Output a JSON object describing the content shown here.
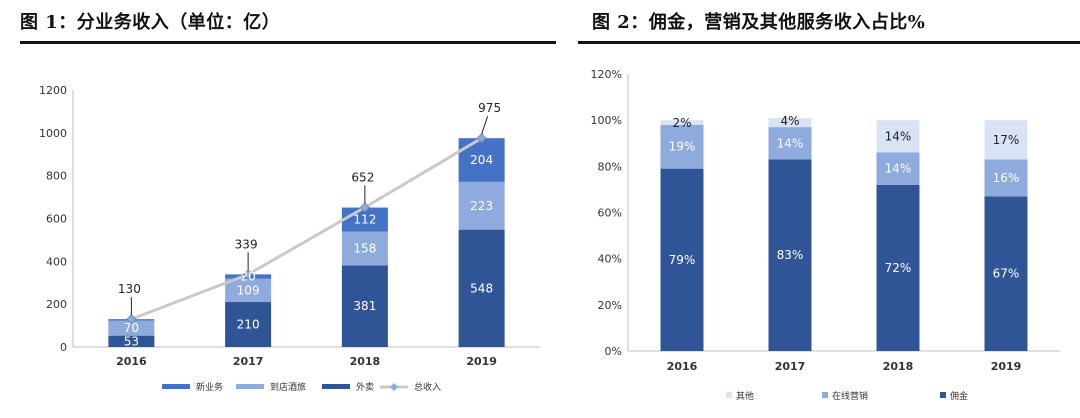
{
  "colors": {
    "dark_blue": "#2f5597",
    "mid_blue": "#4472c4",
    "light_blue": "#8faadc",
    "pale_blue": "#dae3f3",
    "line_gray": "#c9c9c9",
    "marker": "#8faadc"
  },
  "chart_data": [
    {
      "type": "bar",
      "stacked": true,
      "title": "图 1：分业务收入（单位：亿）",
      "categories": [
        "2016",
        "2017",
        "2018",
        "2019"
      ],
      "ylim": [
        0,
        1200
      ],
      "yticks": [
        0,
        200,
        400,
        600,
        800,
        1000,
        1200
      ],
      "xlabel": "",
      "ylabel": "",
      "legend_position": "bottom",
      "grid": false,
      "series": [
        {
          "name": "外卖",
          "color": "#2f5597",
          "values": [
            53,
            210,
            381,
            548
          ]
        },
        {
          "name": "到店酒旅",
          "color": "#8faadc",
          "values": [
            70,
            109,
            158,
            223
          ]
        },
        {
          "name": "新业务",
          "color": "#4472c4",
          "values": [
            7,
            20,
            112,
            204
          ]
        }
      ],
      "segment_labels": [
        [
          "53",
          "210",
          "381",
          "548"
        ],
        [
          "70",
          "109",
          "158",
          "223"
        ],
        [
          "",
          "20",
          "112",
          "204"
        ]
      ],
      "line_series": {
        "name": "总收入",
        "values": [
          130,
          339,
          652,
          975
        ],
        "labels": [
          "130",
          "339",
          "652",
          "975"
        ]
      },
      "legend": [
        "新业务",
        "到店酒旅",
        "外卖",
        "总收入"
      ]
    },
    {
      "type": "bar",
      "stacked": true,
      "title": "图 2：佣金，营销及其他服务收入占比%",
      "categories": [
        "2016",
        "2017",
        "2018",
        "2019"
      ],
      "ylim": [
        0,
        120
      ],
      "yticks": [
        0,
        20,
        40,
        60,
        80,
        100,
        120
      ],
      "ytick_labels": [
        "0%",
        "20%",
        "40%",
        "60%",
        "80%",
        "100%",
        "120%"
      ],
      "xlabel": "",
      "ylabel": "",
      "legend_position": "bottom",
      "grid": false,
      "series": [
        {
          "name": "佣金",
          "color": "#2f5597",
          "values": [
            79,
            83,
            72,
            67
          ],
          "labels": [
            "79%",
            "83%",
            "72%",
            "67%"
          ]
        },
        {
          "name": "在线营销",
          "color": "#8faadc",
          "values": [
            19,
            14,
            14,
            16
          ],
          "labels": [
            "19%",
            "14%",
            "14%",
            "16%"
          ]
        },
        {
          "name": "其他",
          "color": "#dae3f3",
          "values": [
            2,
            4,
            14,
            17
          ],
          "labels": [
            "2%",
            "4%",
            "14%",
            "17%"
          ]
        }
      ],
      "legend": [
        "其他",
        "在线营销",
        "佣金"
      ]
    }
  ]
}
